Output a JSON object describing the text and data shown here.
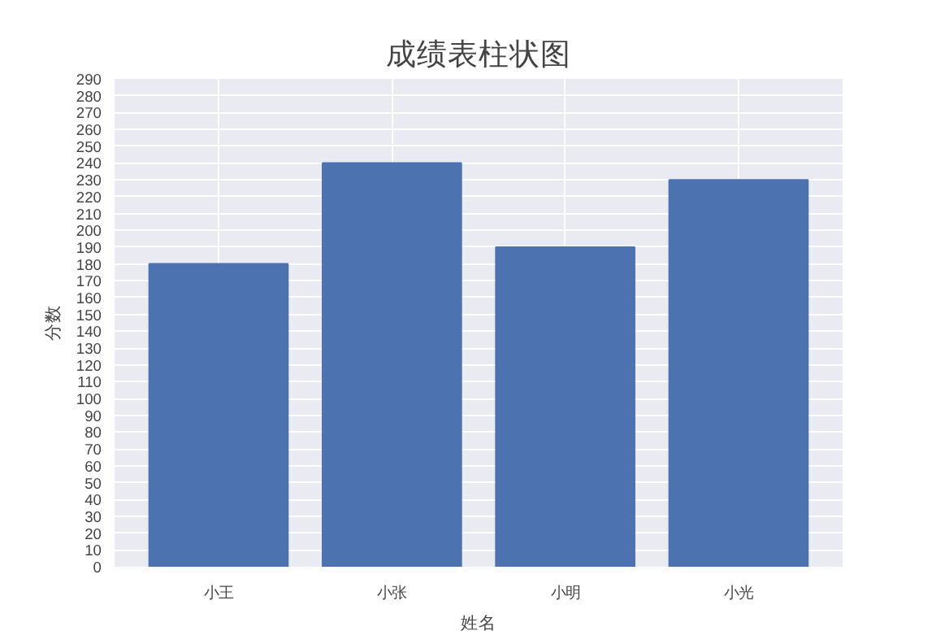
{
  "chart_data": {
    "type": "bar",
    "title": "成绩表柱状图",
    "xlabel": "姓名",
    "ylabel": "分数",
    "categories": [
      "小王",
      "小张",
      "小明",
      "小光"
    ],
    "values": [
      180,
      240,
      190,
      230
    ],
    "color": "#4c72b0",
    "ylim": [
      0,
      290
    ],
    "yticks": [
      0,
      10,
      20,
      30,
      40,
      50,
      60,
      70,
      80,
      90,
      100,
      110,
      120,
      130,
      140,
      150,
      160,
      170,
      180,
      190,
      200,
      210,
      220,
      230,
      240,
      250,
      260,
      270,
      280,
      290
    ],
    "grid": true
  }
}
